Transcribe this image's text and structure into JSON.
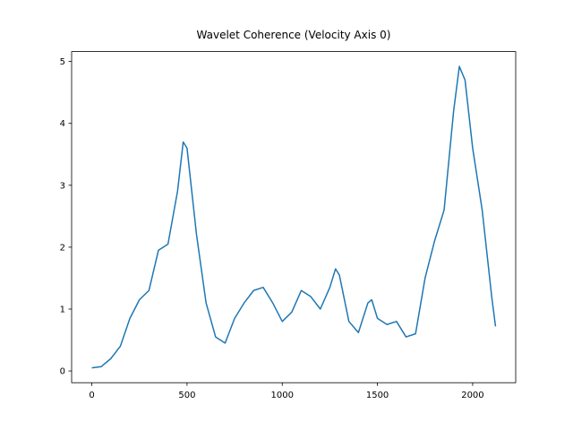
{
  "chart_data": {
    "type": "line",
    "title": "Wavelet Coherence (Velocity Axis 0)",
    "x": [
      0,
      50,
      100,
      150,
      200,
      250,
      300,
      350,
      400,
      450,
      480,
      500,
      550,
      600,
      650,
      700,
      750,
      800,
      850,
      900,
      950,
      1000,
      1050,
      1100,
      1150,
      1200,
      1250,
      1280,
      1300,
      1350,
      1400,
      1450,
      1470,
      1500,
      1550,
      1600,
      1650,
      1700,
      1750,
      1800,
      1850,
      1900,
      1930,
      1960,
      2000,
      2050,
      2100,
      2120
    ],
    "series": [
      {
        "color": "#1f77b4",
        "values": [
          0.05,
          0.07,
          0.2,
          0.4,
          0.85,
          1.15,
          1.3,
          1.95,
          2.05,
          2.9,
          3.7,
          3.6,
          2.2,
          1.1,
          0.55,
          0.45,
          0.85,
          1.1,
          1.3,
          1.35,
          1.1,
          0.8,
          0.95,
          1.3,
          1.2,
          1.0,
          1.35,
          1.65,
          1.55,
          0.8,
          0.62,
          1.1,
          1.15,
          0.85,
          0.75,
          0.8,
          0.55,
          0.6,
          1.5,
          2.1,
          2.6,
          4.2,
          4.92,
          4.7,
          3.6,
          2.6,
          1.2,
          0.72
        ]
      }
    ],
    "xlim": [
      -106,
      2226
    ],
    "ylim": [
      -0.19,
      5.16
    ],
    "xticks": [
      0,
      500,
      1000,
      1500,
      2000
    ],
    "yticks": [
      0,
      1,
      2,
      3,
      4,
      5
    ],
    "grid": false
  }
}
